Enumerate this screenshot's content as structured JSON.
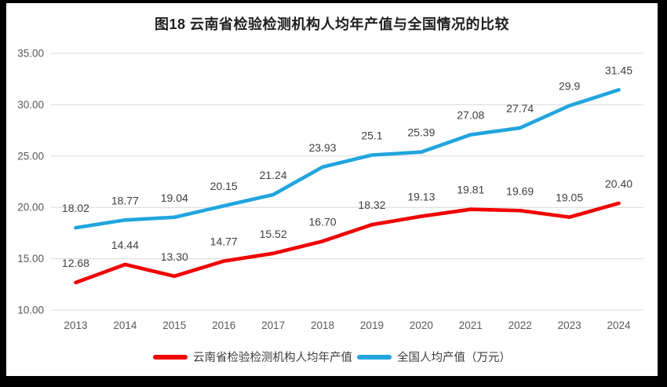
{
  "chart_data": {
    "type": "line",
    "title": "图18 云南省检验检测机构人均年产值与全国情况的比较",
    "categories": [
      "2013",
      "2014",
      "2015",
      "2016",
      "2017",
      "2018",
      "2019",
      "2020",
      "2021",
      "2022",
      "2023",
      "2024"
    ],
    "series": [
      {
        "name": "云南省检验检测机构人均年产值",
        "color": "#f20000",
        "values": [
          12.68,
          14.44,
          13.3,
          14.77,
          15.52,
          16.7,
          18.32,
          19.13,
          19.81,
          19.69,
          19.05,
          20.4
        ],
        "labels": [
          "12.68",
          "14.44",
          "13.30",
          "14.77",
          "15.52",
          "16.70",
          "18.32",
          "19.13",
          "19.81",
          "19.69",
          "19.05",
          "20.40"
        ]
      },
      {
        "name": "全国人均产值（万元）",
        "color": "#21a5de",
        "values": [
          18.02,
          18.77,
          19.04,
          20.15,
          21.24,
          23.93,
          25.1,
          25.39,
          27.08,
          27.74,
          29.9,
          31.45
        ],
        "labels": [
          "18.02",
          "18.77",
          "19.04",
          "20.15",
          "21.24",
          "23.93",
          "25.1",
          "25.39",
          "27.08",
          "27.74",
          "29.9",
          "31.45"
        ]
      }
    ],
    "y_axis": {
      "min": 10,
      "max": 35,
      "step": 5,
      "tick_labels": [
        "10.00",
        "15.00",
        "20.00",
        "25.00",
        "30.00",
        "35.00"
      ]
    },
    "x_label": "",
    "y_label": "",
    "grid": true,
    "legend_position": "bottom",
    "colors": {
      "grid_line": "#d9d9d9",
      "axis_text": "#595959",
      "data_label_text": "#404040",
      "background": "#ffffff",
      "frame": "#000000"
    }
  }
}
